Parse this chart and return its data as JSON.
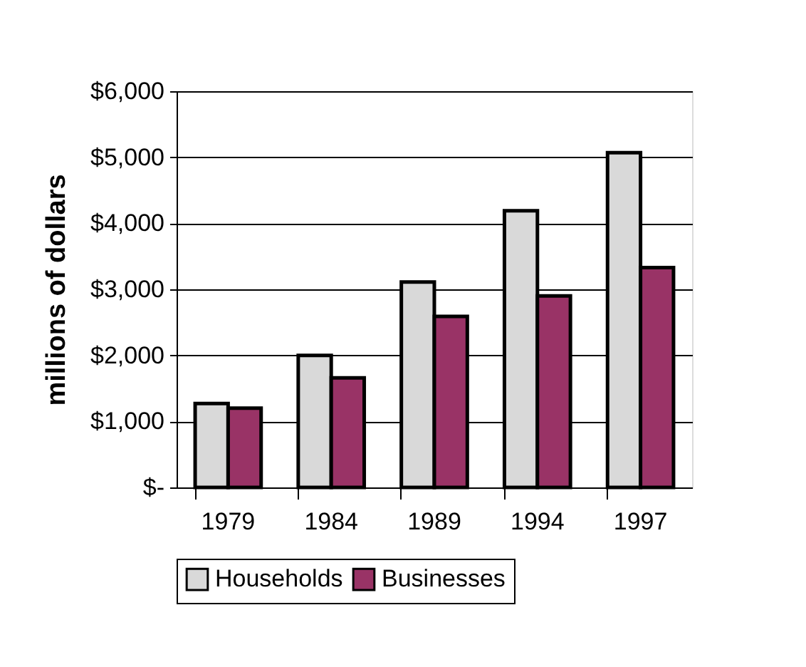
{
  "chart_data": {
    "type": "bar",
    "ylabel": "millions of dollars",
    "categories": [
      "1979",
      "1984",
      "1989",
      "1994",
      "1997"
    ],
    "series": [
      {
        "name": "Households",
        "color": "#d9d9d9",
        "values": [
          1270,
          2000,
          3110,
          4190,
          5070
        ]
      },
      {
        "name": "Businesses",
        "color": "#993366",
        "values": [
          1200,
          1660,
          2590,
          2900,
          3330
        ]
      }
    ],
    "ylim": [
      0,
      6000
    ],
    "yticks": [
      {
        "value": 0,
        "label": "$-"
      },
      {
        "value": 1000,
        "label": "$1,000"
      },
      {
        "value": 2000,
        "label": "$2,000"
      },
      {
        "value": 3000,
        "label": "$3,000"
      },
      {
        "value": 4000,
        "label": "$4,000"
      },
      {
        "value": 5000,
        "label": "$5,000"
      },
      {
        "value": 6000,
        "label": "$6,000"
      }
    ],
    "grid": "y",
    "legend": "bottom"
  }
}
